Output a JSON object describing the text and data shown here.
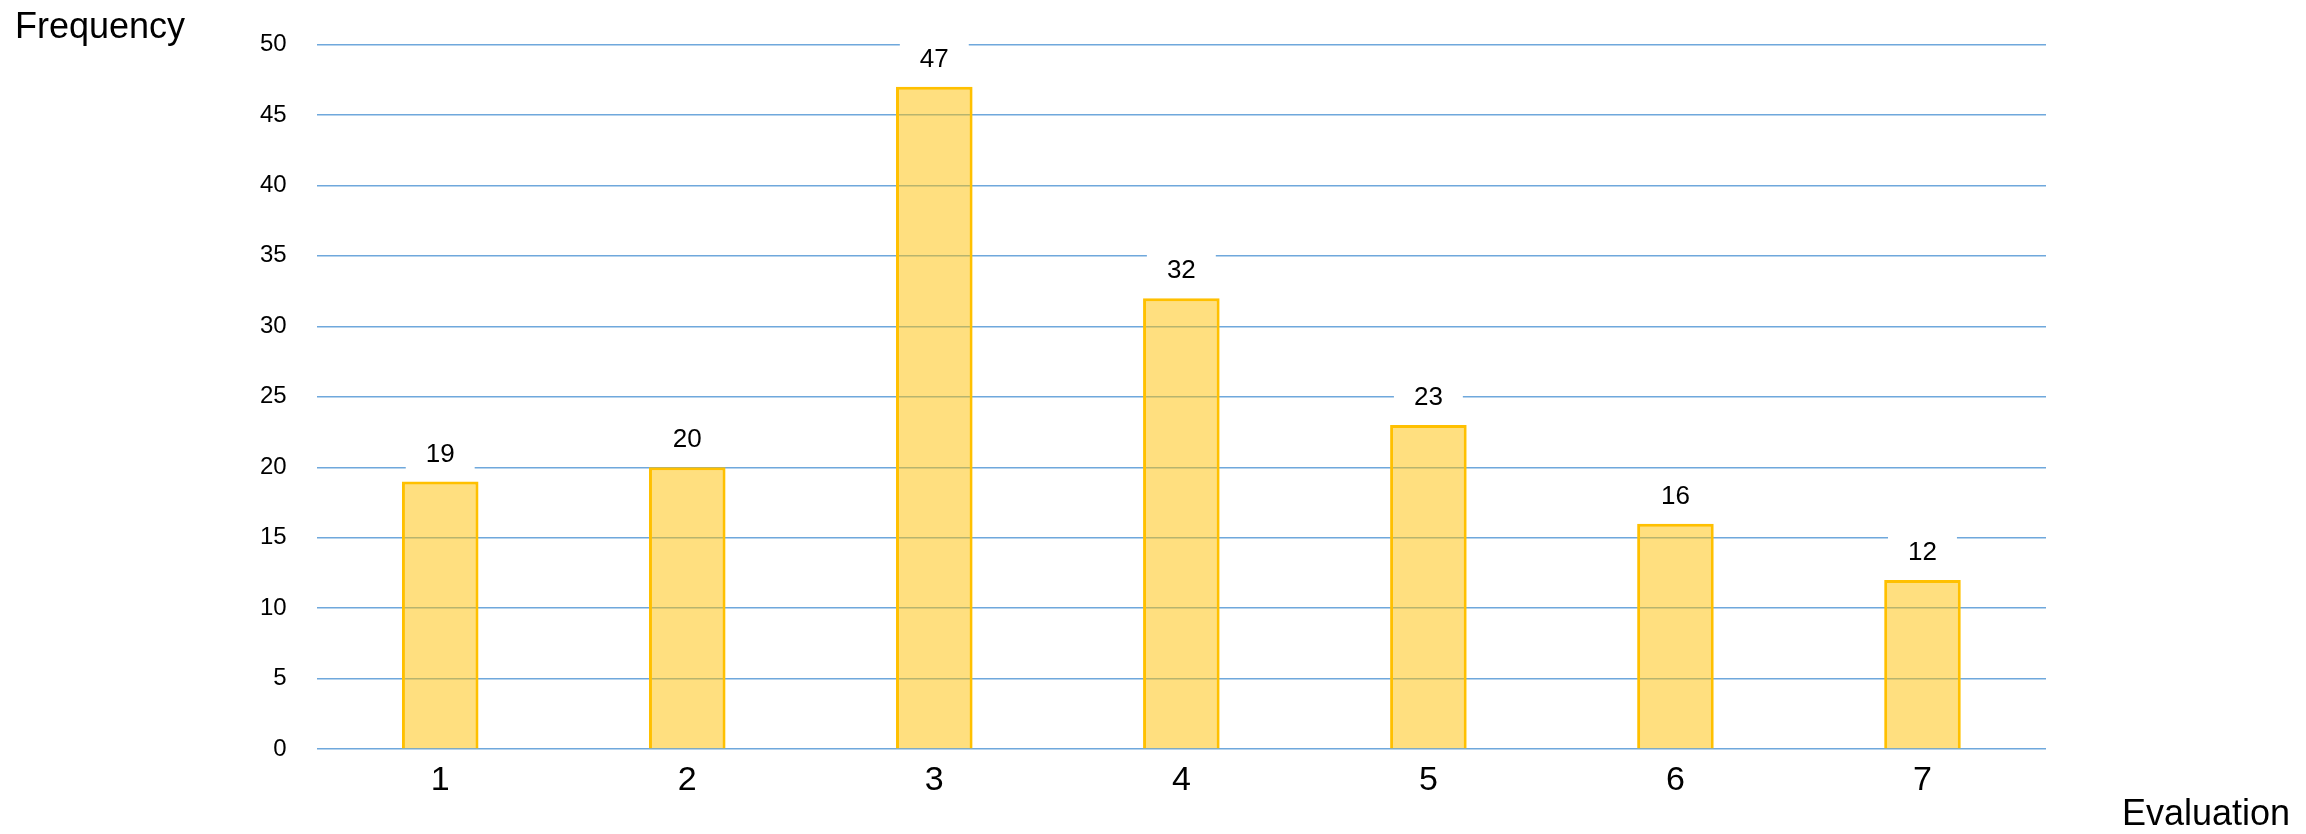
{
  "chart_data": {
    "type": "bar",
    "xlabel": "Evaluation",
    "ylabel": "Frequency",
    "categories": [
      "1",
      "2",
      "3",
      "4",
      "5",
      "6",
      "7"
    ],
    "values": [
      19,
      20,
      47,
      32,
      23,
      16,
      12
    ],
    "color": "#ffc000",
    "ylim": [
      0,
      50
    ],
    "yticks": [
      0,
      5,
      10,
      15,
      20,
      25,
      30,
      35,
      40,
      45,
      50
    ],
    "grid": "y",
    "legend": false,
    "data_labels": true
  }
}
